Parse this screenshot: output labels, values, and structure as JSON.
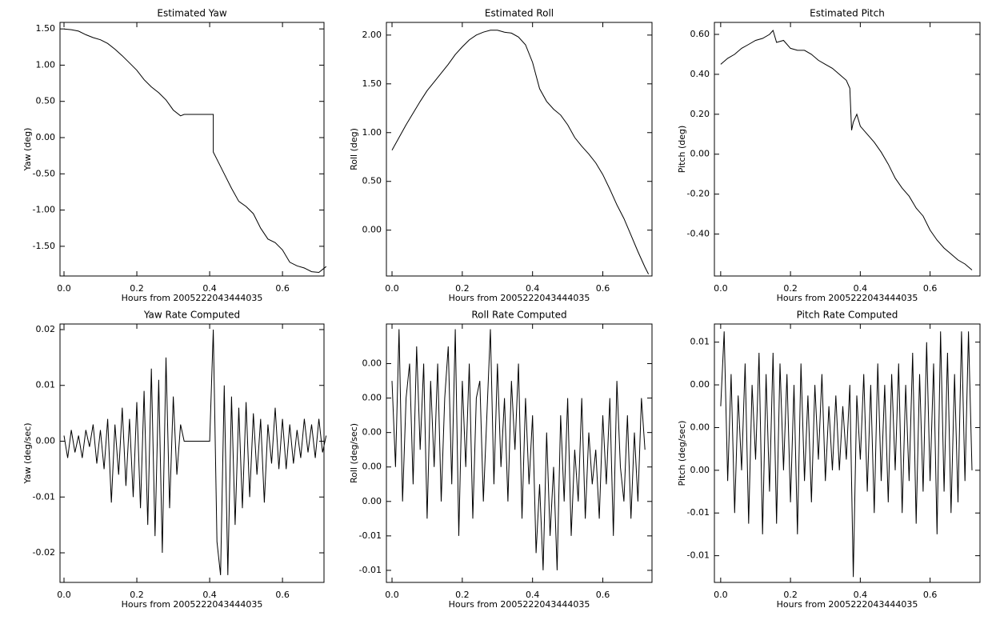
{
  "chart_data": [
    {
      "type": "line",
      "title": "Estimated Yaw",
      "xlabel": "Hours from 2005222043444035",
      "ylabel": "Yaw (deg)",
      "color": "#000000",
      "xlim": [
        -0.011,
        0.714
      ],
      "xticks": [
        {
          "value": 0,
          "label": "0.0"
        },
        0.2,
        0.4,
        0.6
      ],
      "ylim": [
        -1.91,
        1.59
      ],
      "yticks": [
        {
          "value": 1.5,
          "label": "1.50"
        },
        {
          "value": 1,
          "label": "1.00"
        },
        {
          "value": 0.5,
          "label": "0.50"
        },
        {
          "value": 0,
          "label": "0.00"
        },
        {
          "value": -0.5,
          "label": "-0.50"
        },
        {
          "value": -1,
          "label": "-1.00"
        },
        {
          "value": -1.5,
          "label": "-1.50"
        }
      ],
      "x": [
        0,
        0.02,
        0.04,
        0.06,
        0.08,
        0.1,
        0.12,
        0.14,
        0.16,
        0.18,
        0.2,
        0.22,
        0.24,
        0.26,
        0.28,
        0.3,
        0.32,
        0.33,
        0.41,
        0.41,
        0.42,
        0.44,
        0.46,
        0.48,
        0.5,
        0.52,
        0.54,
        0.56,
        0.58,
        0.6,
        0.62,
        0.64,
        0.66,
        0.68,
        0.7,
        0.72
      ],
      "values": [
        1.5,
        1.49,
        1.47,
        1.42,
        1.38,
        1.35,
        1.3,
        1.22,
        1.13,
        1.03,
        0.93,
        0.8,
        0.7,
        0.62,
        0.52,
        0.38,
        0.3,
        0.32,
        0.32,
        -0.2,
        -0.3,
        -0.5,
        -0.7,
        -0.88,
        -0.95,
        -1.05,
        -1.25,
        -1.4,
        -1.45,
        -1.55,
        -1.72,
        -1.77,
        -1.8,
        -1.85,
        -1.86,
        -1.78
      ]
    },
    {
      "type": "line",
      "title": "Estimated Roll",
      "xlabel": "Hours from 2005222043444035",
      "ylabel": "Roll (deg)",
      "color": "#000000",
      "xlim": [
        -0.016,
        0.74
      ],
      "xticks": [
        {
          "value": 0,
          "label": "0.0"
        },
        0.2,
        0.4,
        0.6
      ],
      "ylim": [
        -0.47,
        2.13
      ],
      "yticks": [
        {
          "value": 2,
          "label": "2.00"
        },
        {
          "value": 1.5,
          "label": "1.50"
        },
        {
          "value": 1,
          "label": "1.00"
        },
        {
          "value": 0.5,
          "label": "0.50"
        },
        {
          "value": 0,
          "label": "0.00"
        }
      ],
      "x": [
        0,
        0.02,
        0.04,
        0.06,
        0.08,
        0.1,
        0.12,
        0.14,
        0.16,
        0.18,
        0.2,
        0.22,
        0.24,
        0.26,
        0.28,
        0.3,
        0.32,
        0.34,
        0.36,
        0.38,
        0.4,
        0.42,
        0.44,
        0.46,
        0.48,
        0.5,
        0.52,
        0.54,
        0.56,
        0.58,
        0.6,
        0.62,
        0.64,
        0.66,
        0.68,
        0.7,
        0.72,
        0.73
      ],
      "values": [
        0.82,
        0.95,
        1.08,
        1.2,
        1.32,
        1.43,
        1.52,
        1.61,
        1.7,
        1.8,
        1.88,
        1.95,
        2.0,
        2.03,
        2.05,
        2.05,
        2.03,
        2.02,
        1.98,
        1.9,
        1.72,
        1.45,
        1.32,
        1.24,
        1.18,
        1.08,
        0.95,
        0.86,
        0.78,
        0.69,
        0.57,
        0.42,
        0.26,
        0.12,
        -0.05,
        -0.22,
        -0.38,
        -0.45
      ]
    },
    {
      "type": "line",
      "title": "Estimated Pitch",
      "xlabel": "Hours from 2005222043444035",
      "ylabel": "Pitch (deg)",
      "color": "#000000",
      "xlim": [
        -0.018,
        0.743
      ],
      "xticks": [
        {
          "value": 0,
          "label": "0.0"
        },
        0.2,
        0.4,
        0.6
      ],
      "ylim": [
        -0.61,
        0.66
      ],
      "yticks": [
        {
          "value": 0.6,
          "label": "0.60"
        },
        {
          "value": 0.4,
          "label": "0.40"
        },
        {
          "value": 0.2,
          "label": "0.20"
        },
        {
          "value": 0,
          "label": "0.00"
        },
        {
          "value": -0.2,
          "label": "-0.20"
        },
        {
          "value": -0.4,
          "label": "-0.40"
        }
      ],
      "x": [
        0,
        0.02,
        0.04,
        0.06,
        0.08,
        0.1,
        0.12,
        0.14,
        0.15,
        0.16,
        0.18,
        0.2,
        0.22,
        0.24,
        0.26,
        0.28,
        0.3,
        0.32,
        0.34,
        0.36,
        0.37,
        0.375,
        0.38,
        0.39,
        0.4,
        0.42,
        0.44,
        0.46,
        0.48,
        0.5,
        0.52,
        0.54,
        0.56,
        0.58,
        0.6,
        0.62,
        0.64,
        0.66,
        0.68,
        0.7,
        0.72
      ],
      "values": [
        0.45,
        0.48,
        0.5,
        0.53,
        0.55,
        0.57,
        0.58,
        0.6,
        0.62,
        0.56,
        0.57,
        0.53,
        0.52,
        0.52,
        0.5,
        0.47,
        0.45,
        0.43,
        0.4,
        0.37,
        0.33,
        0.12,
        0.16,
        0.2,
        0.14,
        0.1,
        0.06,
        0.01,
        -0.05,
        -0.12,
        -0.17,
        -0.21,
        -0.27,
        -0.31,
        -0.38,
        -0.43,
        -0.47,
        -0.5,
        -0.53,
        -0.55,
        -0.58
      ]
    },
    {
      "type": "line",
      "title": "Yaw Rate Computed",
      "xlabel": "Hours from 2005222043444035",
      "ylabel": "Yaw (deg/sec)",
      "color": "#000000",
      "xlim": [
        -0.011,
        0.714
      ],
      "xticks": [
        {
          "value": 0,
          "label": "0.0"
        },
        0.2,
        0.4,
        0.6
      ],
      "ylim": [
        -0.0253,
        0.021
      ],
      "yticks": [
        0.02,
        0.01,
        {
          "value": 0,
          "label": "0.00"
        },
        -0.01,
        -0.02
      ],
      "x": [
        0,
        0.01,
        0.02,
        0.03,
        0.04,
        0.05,
        0.06,
        0.07,
        0.08,
        0.09,
        0.1,
        0.11,
        0.12,
        0.13,
        0.14,
        0.15,
        0.16,
        0.17,
        0.18,
        0.19,
        0.2,
        0.21,
        0.22,
        0.23,
        0.24,
        0.25,
        0.26,
        0.27,
        0.28,
        0.29,
        0.3,
        0.31,
        0.32,
        0.33,
        0.34,
        0.35,
        0.36,
        0.37,
        0.38,
        0.39,
        0.4,
        0.41,
        0.42,
        0.43,
        0.44,
        0.45,
        0.46,
        0.47,
        0.48,
        0.49,
        0.5,
        0.51,
        0.52,
        0.53,
        0.54,
        0.55,
        0.56,
        0.57,
        0.58,
        0.59,
        0.6,
        0.61,
        0.62,
        0.63,
        0.64,
        0.65,
        0.66,
        0.67,
        0.68,
        0.69,
        0.7,
        0.71,
        0.72
      ],
      "values": [
        0.001,
        -0.003,
        0.002,
        -0.002,
        0.001,
        -0.003,
        0.002,
        -0.001,
        0.003,
        -0.004,
        0.002,
        -0.005,
        0.004,
        -0.011,
        0.003,
        -0.006,
        0.006,
        -0.008,
        0.004,
        -0.01,
        0.007,
        -0.012,
        0.009,
        -0.015,
        0.013,
        -0.017,
        0.011,
        -0.02,
        0.015,
        -0.012,
        0.008,
        -0.006,
        0.003,
        0,
        0,
        0,
        0,
        0,
        0,
        0,
        0,
        0.02,
        -0.018,
        -0.024,
        0.01,
        -0.024,
        0.008,
        -0.015,
        0.006,
        -0.012,
        0.007,
        -0.01,
        0.005,
        -0.006,
        0.004,
        -0.011,
        0.003,
        -0.004,
        0.006,
        -0.005,
        0.004,
        -0.005,
        0.003,
        -0.004,
        0.002,
        -0.003,
        0.004,
        -0.002,
        0.003,
        -0.003,
        0.004,
        -0.002,
        0.001
      ]
    },
    {
      "type": "line",
      "title": "Roll Rate Computed",
      "xlabel": "Hours from 2005222043444035",
      "ylabel": "Roll (deg/sec)",
      "color": "#000000",
      "xlim": [
        -0.016,
        0.74
      ],
      "xticks": [
        {
          "value": 0,
          "label": "0.0"
        },
        0.2,
        0.4,
        0.6
      ],
      "ylim": [
        -0.0087,
        0.0063
      ],
      "yticks": [
        {
          "value": 0.004,
          "label": "0.00"
        },
        {
          "value": 0.002,
          "label": "0.00"
        },
        {
          "value": 0,
          "label": "0.00"
        },
        {
          "value": -0.002,
          "label": "0.00"
        },
        {
          "value": -0.004,
          "label": "0.00"
        },
        {
          "value": -0.006,
          "label": "-0.01"
        },
        {
          "value": -0.008,
          "label": "-0.01"
        }
      ],
      "x": [
        0,
        0.01,
        0.02,
        0.03,
        0.04,
        0.05,
        0.06,
        0.07,
        0.08,
        0.09,
        0.1,
        0.11,
        0.12,
        0.13,
        0.14,
        0.15,
        0.16,
        0.17,
        0.18,
        0.19,
        0.2,
        0.21,
        0.22,
        0.23,
        0.24,
        0.25,
        0.26,
        0.27,
        0.28,
        0.29,
        0.3,
        0.31,
        0.32,
        0.33,
        0.34,
        0.35,
        0.36,
        0.37,
        0.38,
        0.39,
        0.4,
        0.41,
        0.42,
        0.43,
        0.44,
        0.45,
        0.46,
        0.47,
        0.48,
        0.49,
        0.5,
        0.51,
        0.52,
        0.53,
        0.54,
        0.55,
        0.56,
        0.57,
        0.58,
        0.59,
        0.6,
        0.61,
        0.62,
        0.63,
        0.64,
        0.65,
        0.66,
        0.67,
        0.68,
        0.69,
        0.7,
        0.71,
        0.72
      ],
      "values": [
        0.003,
        -0.002,
        0.006,
        -0.004,
        0.002,
        0.004,
        -0.003,
        0.005,
        -0.001,
        0.004,
        -0.005,
        0.003,
        -0.002,
        0.004,
        -0.004,
        0.002,
        0.005,
        -0.003,
        0.006,
        -0.006,
        0.003,
        -0.002,
        0.004,
        -0.005,
        0.002,
        0.003,
        -0.004,
        0.001,
        0.006,
        -0.003,
        0.004,
        -0.002,
        0.002,
        -0.004,
        0.003,
        -0.001,
        0.004,
        -0.005,
        0.002,
        -0.003,
        0.001,
        -0.007,
        -0.003,
        -0.008,
        0,
        -0.006,
        -0.002,
        -0.008,
        0.001,
        -0.004,
        0.002,
        -0.006,
        -0.001,
        -0.004,
        0.002,
        -0.005,
        0,
        -0.003,
        -0.001,
        -0.005,
        0.001,
        -0.003,
        0.002,
        -0.006,
        0.003,
        -0.002,
        -0.004,
        0.001,
        -0.005,
        0,
        -0.004,
        0.002,
        -0.001
      ]
    },
    {
      "type": "line",
      "title": "Pitch Rate Computed",
      "xlabel": "Hours from 2005222043444035",
      "ylabel": "Pitch (deg/sec)",
      "color": "#000000",
      "xlim": [
        -0.018,
        0.743
      ],
      "xticks": [
        {
          "value": 0,
          "label": "0.0"
        },
        0.2,
        0.4,
        0.6
      ],
      "ylim": [
        -0.0145,
        0.0097
      ],
      "yticks": [
        {
          "value": 0.008,
          "label": "0.01"
        },
        {
          "value": 0.004,
          "label": "0.00"
        },
        {
          "value": 0,
          "label": "0.00"
        },
        {
          "value": -0.004,
          "label": "0.00"
        },
        {
          "value": -0.008,
          "label": "-0.01"
        },
        {
          "value": -0.012,
          "label": "-0.01"
        }
      ],
      "x": [
        0,
        0.01,
        0.02,
        0.03,
        0.04,
        0.05,
        0.06,
        0.07,
        0.08,
        0.09,
        0.1,
        0.11,
        0.12,
        0.13,
        0.14,
        0.15,
        0.16,
        0.17,
        0.18,
        0.19,
        0.2,
        0.21,
        0.22,
        0.23,
        0.24,
        0.25,
        0.26,
        0.27,
        0.28,
        0.29,
        0.3,
        0.31,
        0.32,
        0.33,
        0.34,
        0.35,
        0.36,
        0.37,
        0.38,
        0.39,
        0.4,
        0.41,
        0.42,
        0.43,
        0.44,
        0.45,
        0.46,
        0.47,
        0.48,
        0.49,
        0.5,
        0.51,
        0.52,
        0.53,
        0.54,
        0.55,
        0.56,
        0.57,
        0.58,
        0.59,
        0.6,
        0.61,
        0.62,
        0.63,
        0.64,
        0.65,
        0.66,
        0.67,
        0.68,
        0.69,
        0.7,
        0.71,
        0.72
      ],
      "values": [
        0.002,
        0.009,
        -0.005,
        0.005,
        -0.008,
        0.003,
        -0.004,
        0.006,
        -0.009,
        0.004,
        -0.003,
        0.007,
        -0.01,
        0.005,
        -0.006,
        0.007,
        -0.009,
        0.006,
        -0.004,
        0.005,
        -0.007,
        0.004,
        -0.01,
        0.006,
        -0.005,
        0.003,
        -0.007,
        0.004,
        -0.003,
        0.005,
        -0.005,
        0.002,
        -0.004,
        0.003,
        -0.004,
        0.002,
        -0.003,
        0.004,
        -0.014,
        0.003,
        -0.003,
        0.005,
        -0.006,
        0.004,
        -0.008,
        0.006,
        -0.005,
        0.004,
        -0.007,
        0.005,
        -0.004,
        0.006,
        -0.008,
        0.004,
        -0.005,
        0.007,
        -0.009,
        0.005,
        -0.006,
        0.008,
        -0.005,
        0.006,
        -0.01,
        0.009,
        -0.006,
        0.007,
        -0.008,
        0.005,
        -0.007,
        0.009,
        -0.005,
        0.009,
        -0.004
      ]
    }
  ]
}
